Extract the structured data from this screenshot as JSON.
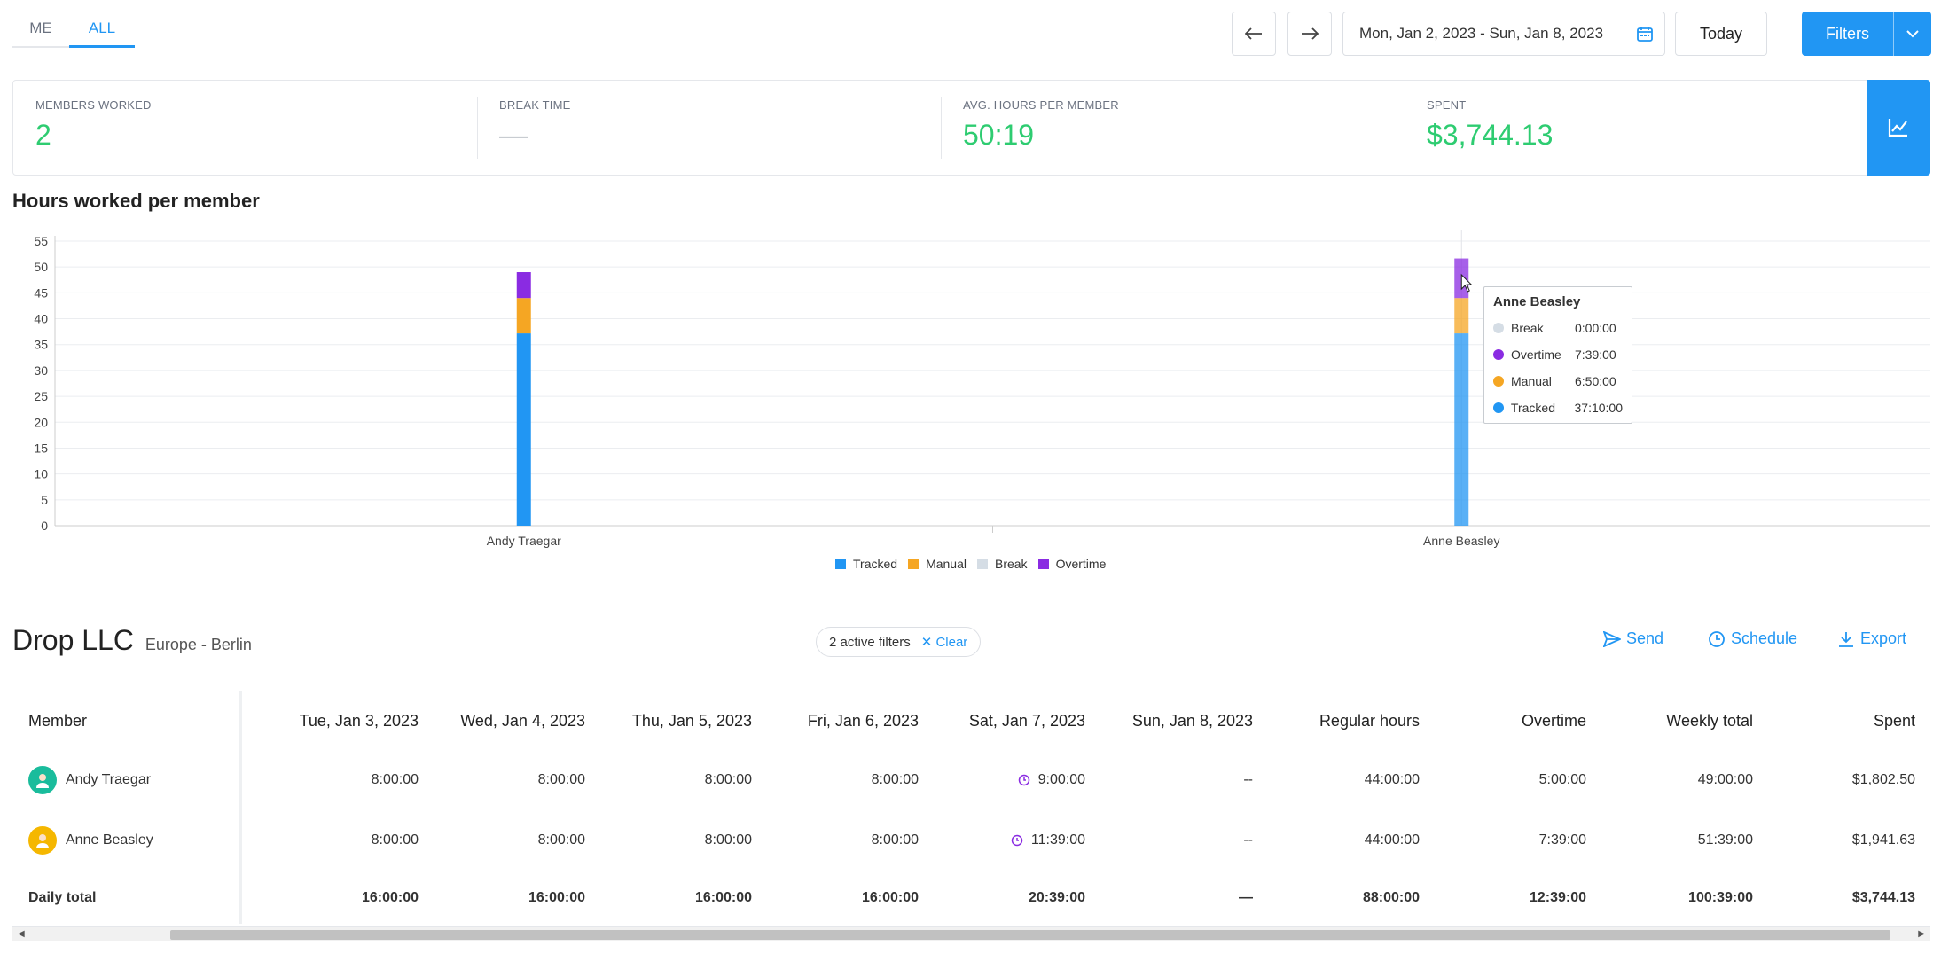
{
  "tabs": [
    {
      "label": "ME"
    },
    {
      "label": "ALL"
    }
  ],
  "toolbar": {
    "date_range": "Mon, Jan 2, 2023 - Sun, Jan 8, 2023",
    "today_label": "Today",
    "filters_label": "Filters"
  },
  "stats": [
    {
      "label": "MEMBERS WORKED",
      "value": "2"
    },
    {
      "label": "BREAK TIME",
      "value": "—"
    },
    {
      "label": "AVG. HOURS PER MEMBER",
      "value": "50:19"
    },
    {
      "label": "SPENT",
      "value": "$3,744.13"
    }
  ],
  "chart_title": "Hours worked per member",
  "colors": {
    "tracked": "#2196f3",
    "manual": "#f5a623",
    "break": "#d5dde5",
    "overtime": "#8a2be2",
    "accent": "#2196f3",
    "positive": "#2ecc71"
  },
  "chart_data": {
    "type": "bar",
    "stacked": true,
    "categories": [
      "Andy Traegar",
      "Anne Beasley"
    ],
    "series": [
      {
        "name": "Tracked",
        "values": [
          37.17,
          37.17
        ]
      },
      {
        "name": "Manual",
        "values": [
          6.83,
          6.83
        ]
      },
      {
        "name": "Break",
        "values": [
          0,
          0
        ]
      },
      {
        "name": "Overtime",
        "values": [
          5.0,
          7.65
        ]
      }
    ],
    "yticks": [
      0,
      5,
      10,
      15,
      20,
      25,
      30,
      35,
      40,
      45,
      50,
      55
    ],
    "ylim": [
      0,
      55
    ],
    "grid": true,
    "legend_position": "bottom",
    "tooltip": {
      "title": "Anne Beasley",
      "rows": [
        {
          "name": "Break",
          "value": "0:00:00"
        },
        {
          "name": "Overtime",
          "value": "7:39:00"
        },
        {
          "name": "Manual",
          "value": "6:50:00"
        },
        {
          "name": "Tracked",
          "value": "37:10:00"
        }
      ]
    }
  },
  "company": {
    "name": "Drop LLC",
    "timezone": "Europe - Berlin"
  },
  "filters_pill": {
    "text": "2 active filters",
    "clear": "Clear"
  },
  "actions": {
    "send": "Send",
    "schedule": "Schedule",
    "export": "Export"
  },
  "table": {
    "headers": [
      "Member",
      "Tue, Jan 3, 2023",
      "Wed, Jan 4, 2023",
      "Thu, Jan 5, 2023",
      "Fri, Jan 6, 2023",
      "Sat, Jan 7, 2023",
      "Sun, Jan 8, 2023",
      "Regular hours",
      "Overtime",
      "Weekly total",
      "Spent"
    ],
    "rows": [
      {
        "name": "Andy Traegar",
        "cells": [
          "8:00:00",
          "8:00:00",
          "8:00:00",
          "8:00:00",
          "9:00:00",
          "--",
          "44:00:00",
          "5:00:00",
          "49:00:00",
          "$1,802.50"
        ]
      },
      {
        "name": "Anne Beasley",
        "cells": [
          "8:00:00",
          "8:00:00",
          "8:00:00",
          "8:00:00",
          "11:39:00",
          "--",
          "44:00:00",
          "7:39:00",
          "51:39:00",
          "$1,941.63"
        ]
      }
    ],
    "total": {
      "label": "Daily total",
      "cells": [
        "16:00:00",
        "16:00:00",
        "16:00:00",
        "16:00:00",
        "20:39:00",
        "—",
        "88:00:00",
        "12:39:00",
        "100:39:00",
        "$3,744.13"
      ]
    }
  }
}
